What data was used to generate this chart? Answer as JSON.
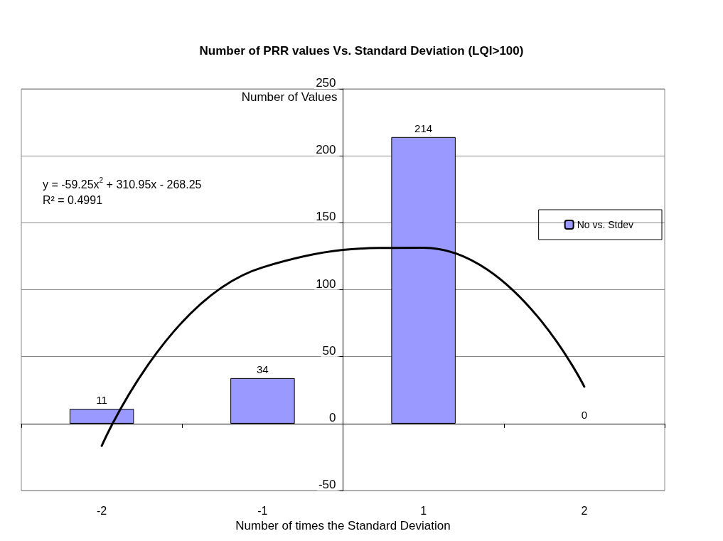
{
  "chart_data": {
    "type": "bar",
    "title": "Number of PRR values Vs. Standard Deviation (LQI>100)",
    "xlabel": "Number of times the Standard Deviation",
    "ylabel": "Number of Values",
    "categories": [
      "-2",
      "-1",
      "1",
      "2"
    ],
    "series": [
      {
        "name": "No vs. Stdev",
        "color": "#9999ff",
        "values": [
          11,
          34,
          214,
          0
        ],
        "value_labels": [
          "11",
          "34",
          "214",
          "0"
        ]
      },
      {
        "type": "line",
        "color": "#000000",
        "values": [
          -16.6,
          116.7,
          131.4,
          27.6
        ]
      }
    ],
    "ylim": [
      -50,
      250
    ],
    "yticks": [
      -50,
      0,
      50,
      100,
      150,
      200,
      250
    ],
    "grid": "y",
    "legend": "top right",
    "marker": "none",
    "line_style": "solid",
    "annotations": [
      "y = -59.25x$^{2}$ + 310.95x - 268.25",
      "R² = 0.4991"
    ]
  }
}
